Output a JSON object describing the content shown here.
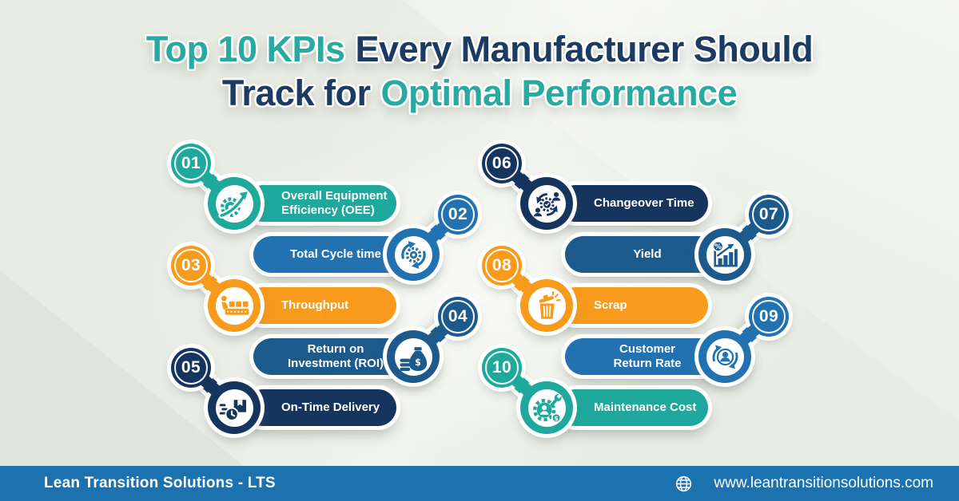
{
  "title": {
    "line1_highlight": "Top 10 KPIs",
    "line1_rest": "Every Manufacturer Should",
    "line2_rest": "Track for",
    "line2_highlight": "Optimal Performance"
  },
  "theme": {
    "background": "#E8ECE3",
    "title_teal": "#2AA9A1",
    "title_navy": "#1B3B62",
    "footer_bar": "#1C72AE",
    "teal": "#1FA89C",
    "blue": "#2272B2",
    "orange": "#F89B1C",
    "steel_blue": "#1D5A8C",
    "navy": "#16355E"
  },
  "items": [
    {
      "number": "01",
      "label": "Overall Equipment\nEfficiency (OEE)",
      "color": "#1FA89C",
      "icon": "gear-growth-icon"
    },
    {
      "number": "02",
      "label": "Total Cycle time",
      "color": "#2272B2",
      "icon": "cycle-arrows-icon"
    },
    {
      "number": "03",
      "label": "Throughput",
      "color": "#F89B1C",
      "icon": "conveyor-worker-icon"
    },
    {
      "number": "04",
      "label": "Return on\nInvestment (ROI)",
      "color": "#1D5A8C",
      "icon": "money-bag-coins-icon"
    },
    {
      "number": "05",
      "label": "On-Time Delivery",
      "color": "#16355E",
      "icon": "delivery-clock-icon"
    },
    {
      "number": "06",
      "label": "Changeover Time",
      "color": "#16355E",
      "icon": "changeover-people-icon"
    },
    {
      "number": "07",
      "label": "Yield",
      "color": "#1D5A8C",
      "icon": "yield-chart-icon"
    },
    {
      "number": "08",
      "label": "Scrap",
      "color": "#F89B1C",
      "icon": "scrap-bin-icon"
    },
    {
      "number": "09",
      "label": "Customer\nReturn Rate",
      "color": "#2272B2",
      "icon": "customer-return-icon"
    },
    {
      "number": "10",
      "label": "Maintenance Cost",
      "color": "#1FA89C",
      "icon": "maintenance-gear-icon"
    }
  ],
  "footer": {
    "company": "Lean Transition Solutions - LTS",
    "website": "www.leantransitionsolutions.com",
    "icon": "globe-icon"
  }
}
